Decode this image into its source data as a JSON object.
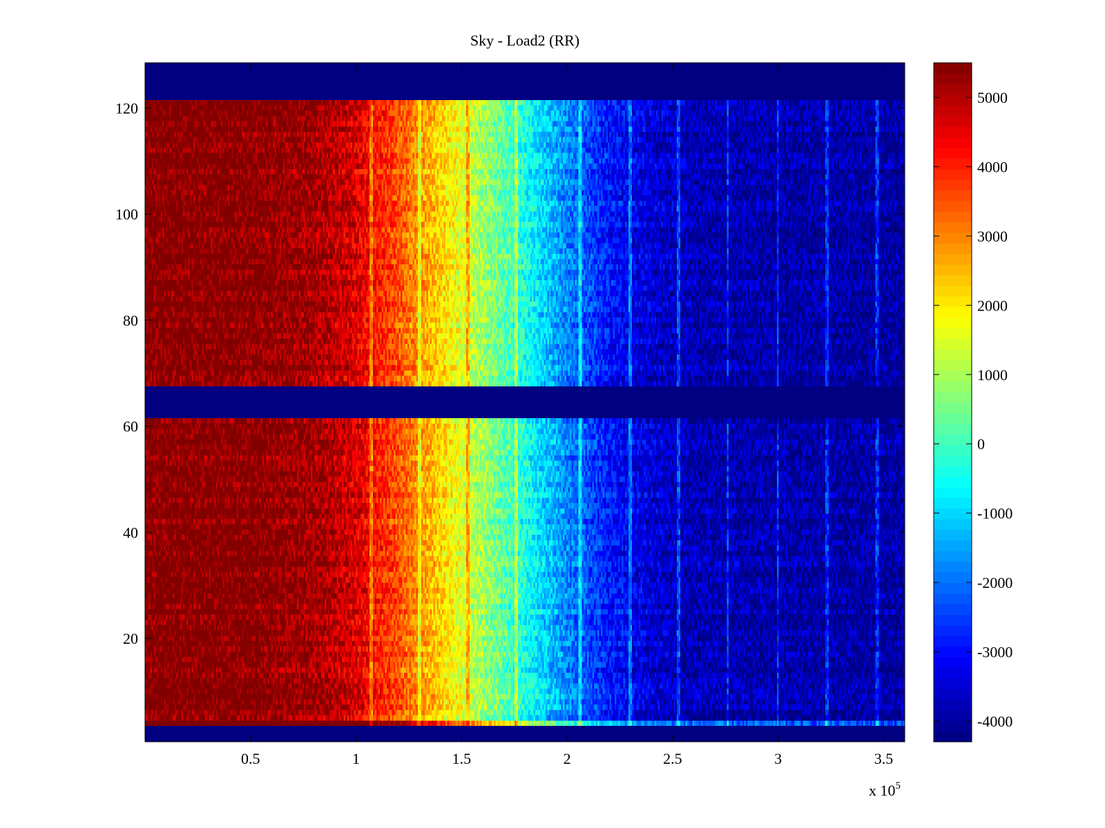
{
  "chart_data": {
    "type": "heatmap",
    "title": "Sky - Load2 (RR)",
    "xlabel": "",
    "ylabel": "",
    "x_multiplier_label": "x 10",
    "x_multiplier_exponent": "5",
    "xlim": [
      0,
      3.6
    ],
    "ylim": [
      0.5,
      128.5
    ],
    "xticks": [
      0.5,
      1,
      1.5,
      2,
      2.5,
      3,
      3.5
    ],
    "xtick_labels": [
      "0.5",
      "1",
      "1.5",
      "2",
      "2.5",
      "3",
      "3.5"
    ],
    "yticks": [
      20,
      40,
      60,
      80,
      100,
      120
    ],
    "ytick_labels": [
      "20",
      "40",
      "60",
      "80",
      "100",
      "120"
    ],
    "colorbar": {
      "colormap": "jet",
      "range": [
        -4300,
        5500
      ],
      "ticks": [
        -4000,
        -3000,
        -2000,
        -1000,
        0,
        1000,
        2000,
        3000,
        4000,
        5000
      ],
      "tick_labels": [
        "-4000",
        "-3000",
        "-2000",
        "-1000",
        "0",
        "1000",
        "2000",
        "3000",
        "4000",
        "5000"
      ]
    },
    "masked_rows": [
      [
        0.5,
        3.5
      ],
      [
        61.5,
        67.5
      ],
      [
        121.5,
        128.5
      ]
    ],
    "mean_profile": {
      "x": [
        0,
        0.5,
        0.8,
        1.0,
        1.2,
        1.4,
        1.6,
        1.8,
        2.0,
        2.2,
        2.4,
        2.6,
        3.0,
        3.6
      ],
      "values": [
        5500,
        5500,
        5200,
        4600,
        3500,
        2200,
        900,
        -400,
        -1800,
        -2900,
        -3500,
        -3800,
        -3900,
        -4000
      ]
    },
    "spectral_lines_x": [
      1.07,
      1.3,
      1.53,
      1.76,
      2.06,
      2.3,
      2.53,
      2.76,
      3.0,
      3.23,
      3.47
    ],
    "grid": false
  }
}
